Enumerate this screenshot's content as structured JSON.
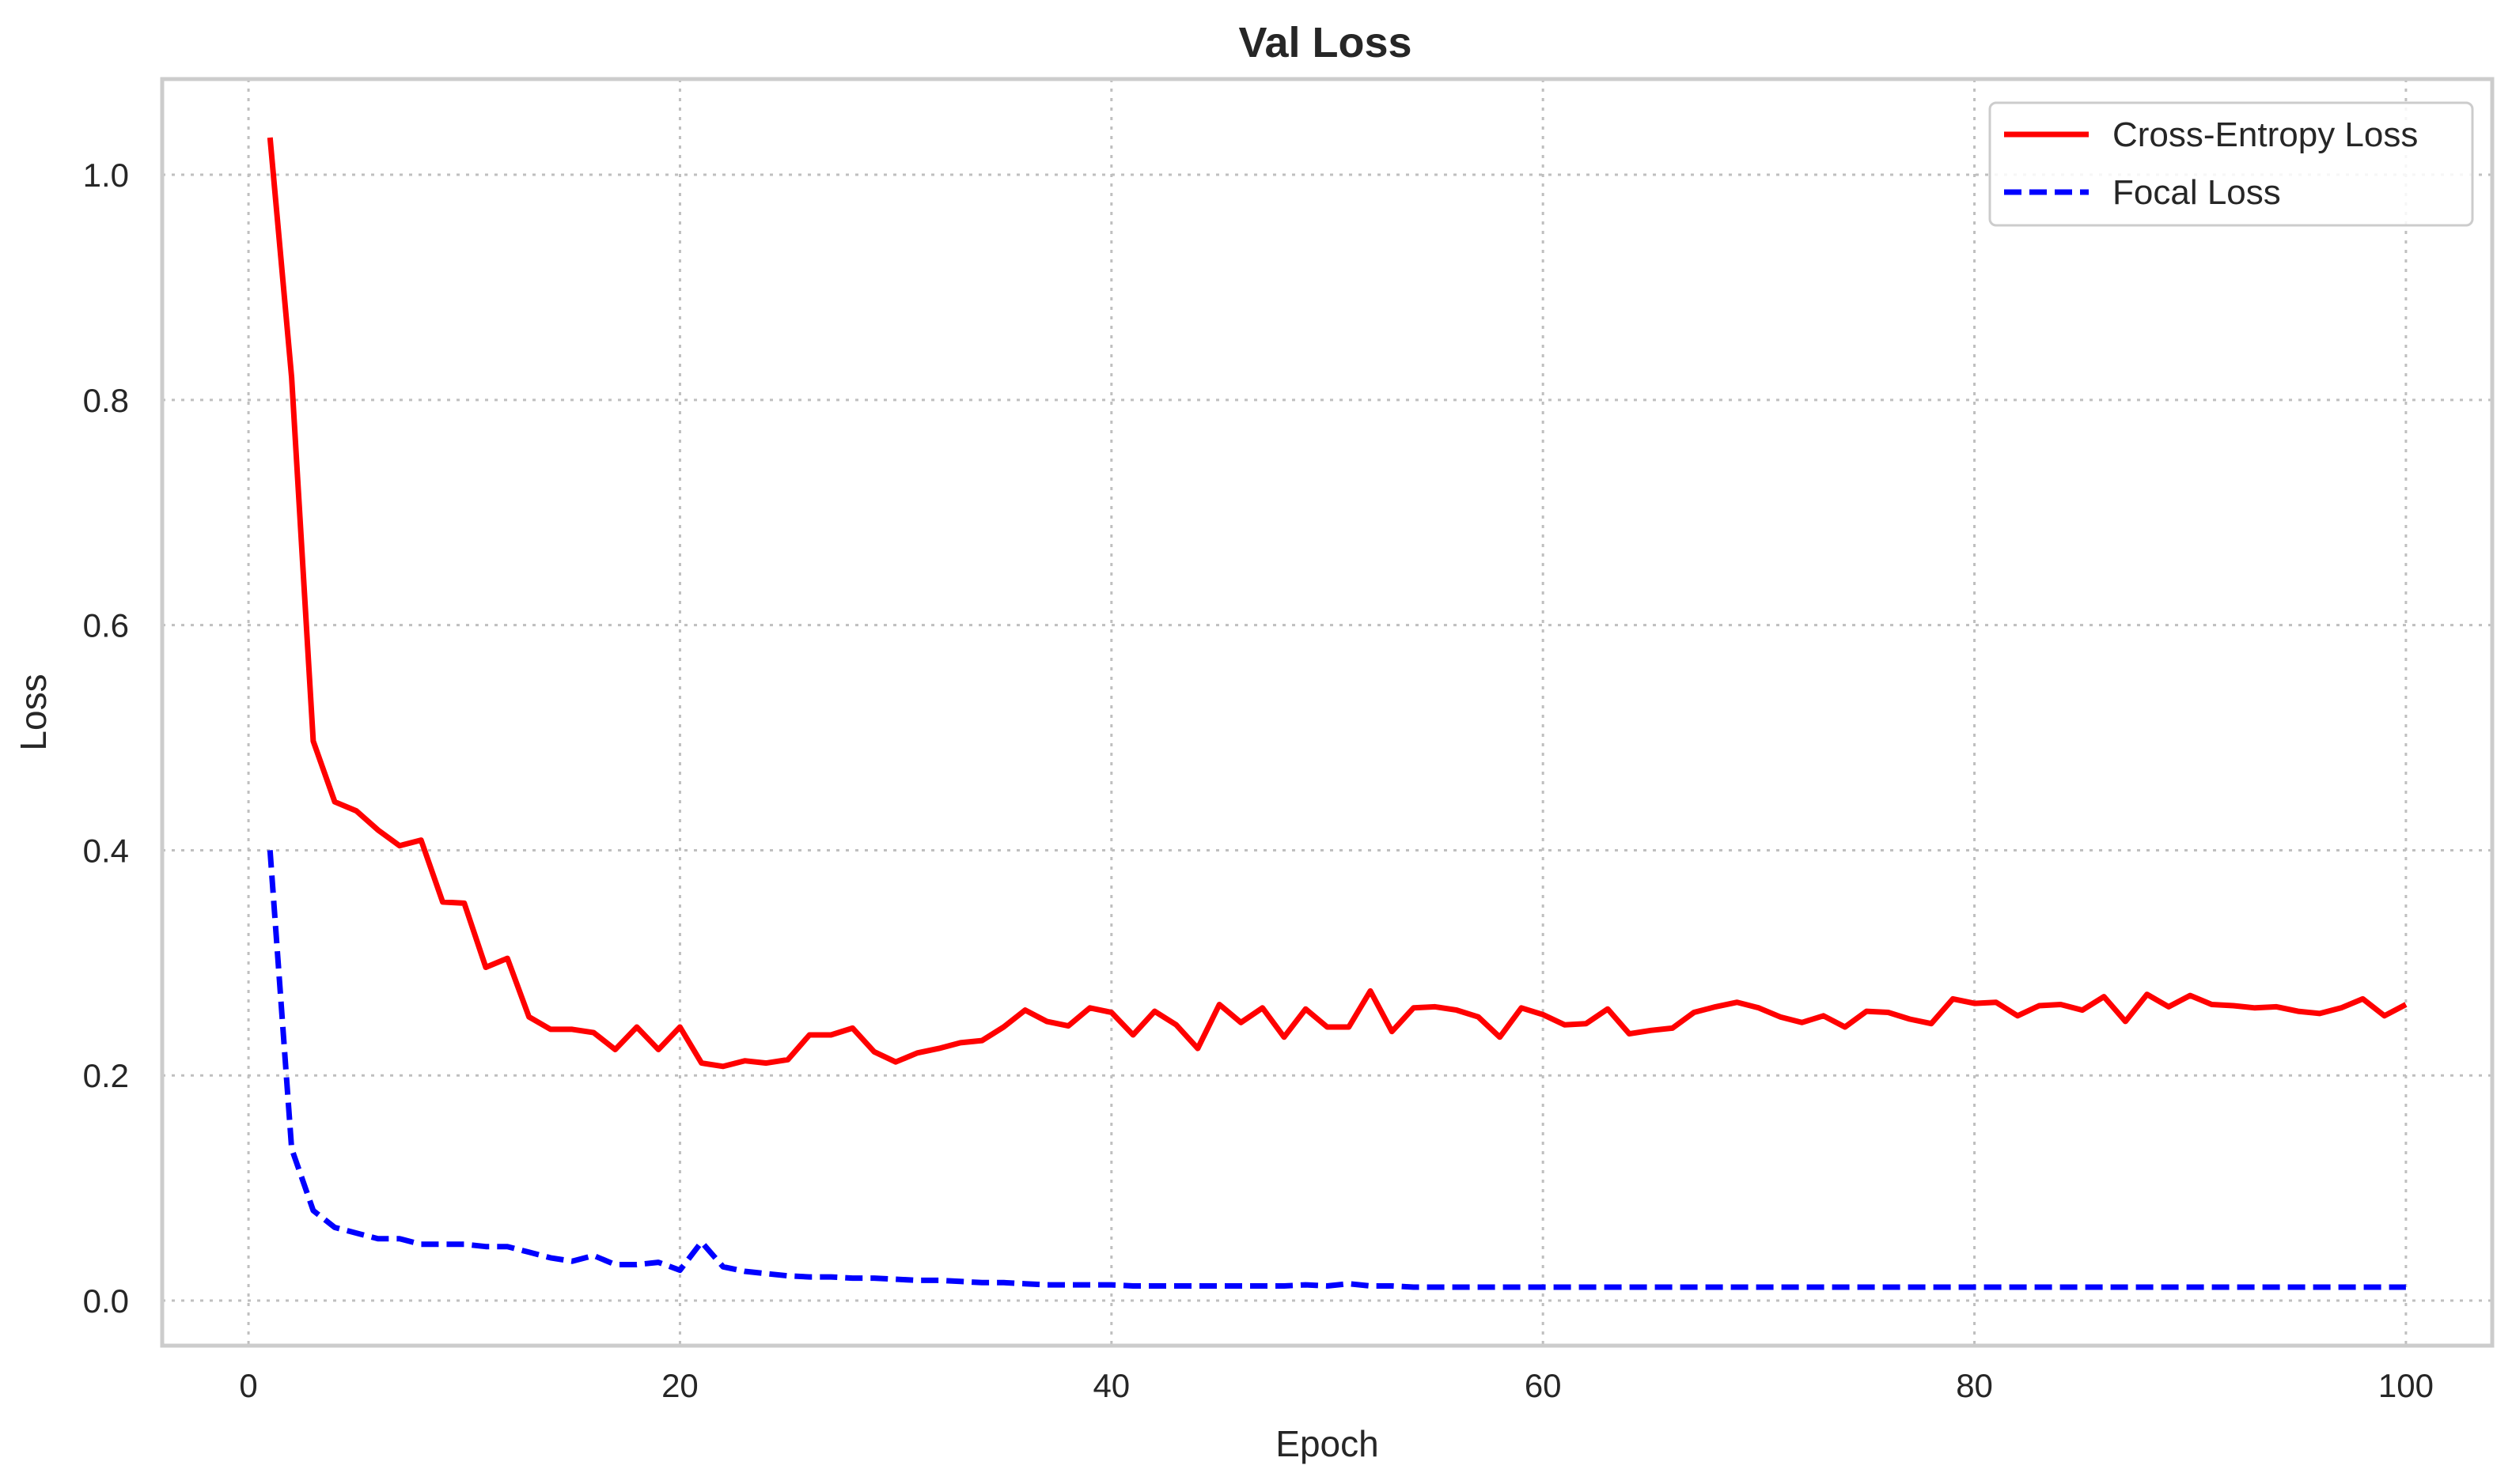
{
  "chart_data": {
    "type": "line",
    "title": "Val Loss",
    "xlabel": "Epoch",
    "ylabel": "Loss",
    "xlim": [
      -4,
      104
    ],
    "ylim": [
      -0.04,
      1.085
    ],
    "xticks": [
      0,
      20,
      40,
      60,
      80,
      100
    ],
    "yticks": [
      0.0,
      0.2,
      0.4,
      0.6,
      0.8,
      1.0
    ],
    "xtick_labels": [
      "0",
      "20",
      "40",
      "60",
      "80",
      "100"
    ],
    "ytick_labels": [
      "0.0",
      "0.2",
      "0.4",
      "0.6",
      "0.8",
      "1.0"
    ],
    "grid": true,
    "legend_position": "top-right",
    "x": [
      1,
      2,
      3,
      4,
      5,
      6,
      7,
      8,
      9,
      10,
      11,
      12,
      13,
      14,
      15,
      16,
      17,
      18,
      19,
      20,
      21,
      22,
      23,
      24,
      25,
      26,
      27,
      28,
      29,
      30,
      31,
      32,
      33,
      34,
      35,
      36,
      37,
      38,
      39,
      40,
      41,
      42,
      43,
      44,
      45,
      46,
      47,
      48,
      49,
      50,
      51,
      52,
      53,
      54,
      55,
      56,
      57,
      58,
      59,
      60,
      61,
      62,
      63,
      64,
      65,
      66,
      67,
      68,
      69,
      70,
      71,
      72,
      73,
      74,
      75,
      76,
      77,
      78,
      79,
      80,
      81,
      82,
      83,
      84,
      85,
      86,
      87,
      88,
      89,
      90,
      91,
      92,
      93,
      94,
      95,
      96,
      97,
      98,
      99,
      100
    ],
    "series": [
      {
        "name": "Cross-Entropy Loss",
        "color": "#ff0000",
        "style": "solid",
        "values": [
          1.033,
          0.82,
          0.497,
          0.443,
          0.435,
          0.418,
          0.404,
          0.409,
          0.354,
          0.353,
          0.296,
          0.304,
          0.252,
          0.241,
          0.241,
          0.238,
          0.223,
          0.243,
          0.223,
          0.243,
          0.211,
          0.208,
          0.213,
          0.211,
          0.214,
          0.236,
          0.236,
          0.242,
          0.221,
          0.212,
          0.22,
          0.224,
          0.229,
          0.231,
          0.243,
          0.258,
          0.248,
          0.244,
          0.26,
          0.256,
          0.236,
          0.257,
          0.245,
          0.224,
          0.263,
          0.247,
          0.26,
          0.234,
          0.259,
          0.243,
          0.243,
          0.275,
          0.239,
          0.26,
          0.261,
          0.258,
          0.252,
          0.234,
          0.26,
          0.254,
          0.245,
          0.246,
          0.259,
          0.237,
          0.24,
          0.242,
          0.256,
          0.261,
          0.265,
          0.26,
          0.252,
          0.247,
          0.253,
          0.243,
          0.257,
          0.256,
          0.25,
          0.246,
          0.268,
          0.264,
          0.265,
          0.253,
          0.262,
          0.263,
          0.258,
          0.27,
          0.248,
          0.272,
          0.261,
          0.271,
          0.263,
          0.262,
          0.26,
          0.261,
          0.257,
          0.255,
          0.26,
          0.268,
          0.253,
          0.263
        ]
      },
      {
        "name": "Focal Loss",
        "color": "#0000ff",
        "style": "dashed",
        "values": [
          0.4,
          0.135,
          0.08,
          0.065,
          0.06,
          0.055,
          0.055,
          0.05,
          0.05,
          0.05,
          0.048,
          0.048,
          0.043,
          0.038,
          0.035,
          0.04,
          0.032,
          0.032,
          0.034,
          0.027,
          0.052,
          0.03,
          0.026,
          0.024,
          0.022,
          0.021,
          0.021,
          0.02,
          0.02,
          0.019,
          0.018,
          0.018,
          0.017,
          0.016,
          0.016,
          0.015,
          0.014,
          0.014,
          0.014,
          0.014,
          0.013,
          0.013,
          0.013,
          0.013,
          0.013,
          0.013,
          0.013,
          0.013,
          0.014,
          0.013,
          0.015,
          0.013,
          0.013,
          0.012,
          0.012,
          0.012,
          0.012,
          0.012,
          0.012,
          0.012,
          0.012,
          0.012,
          0.012,
          0.012,
          0.012,
          0.012,
          0.012,
          0.012,
          0.012,
          0.012,
          0.012,
          0.012,
          0.012,
          0.012,
          0.012,
          0.012,
          0.012,
          0.012,
          0.012,
          0.012,
          0.012,
          0.012,
          0.012,
          0.012,
          0.012,
          0.012,
          0.012,
          0.012,
          0.012,
          0.012,
          0.012,
          0.012,
          0.012,
          0.012,
          0.012,
          0.012,
          0.012,
          0.012,
          0.012,
          0.012
        ]
      }
    ]
  }
}
